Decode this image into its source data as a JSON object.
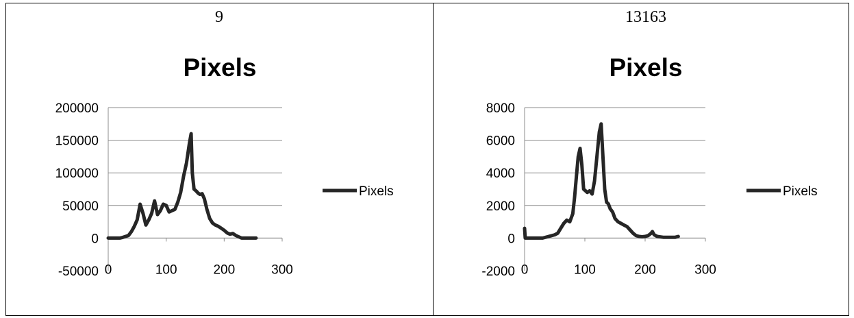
{
  "cells": [
    {
      "heading": "9"
    },
    {
      "heading": "13163"
    }
  ],
  "chart_data": [
    {
      "type": "line",
      "title": "Pixels",
      "xlabel": "",
      "ylabel": "",
      "xlim": [
        0,
        300
      ],
      "ylim": [
        -50000,
        200000
      ],
      "x_ticks": [
        0,
        100,
        200,
        300
      ],
      "y_ticks": [
        -50000,
        0,
        50000,
        100000,
        150000,
        200000
      ],
      "grid": "horizontal",
      "legend_position": "right",
      "series": [
        {
          "name": "Pixels",
          "color": "#262626",
          "x": [
            0,
            20,
            25,
            30,
            35,
            40,
            45,
            50,
            55,
            60,
            65,
            70,
            75,
            80,
            85,
            90,
            95,
            100,
            105,
            110,
            115,
            120,
            125,
            130,
            135,
            140,
            143,
            145,
            148,
            152,
            155,
            158,
            162,
            166,
            170,
            175,
            180,
            185,
            190,
            195,
            200,
            205,
            210,
            215,
            220,
            225,
            230,
            235,
            240,
            245,
            250,
            255
          ],
          "y": [
            0,
            0,
            1000,
            2500,
            4000,
            10000,
            18000,
            28000,
            52000,
            38000,
            20000,
            28000,
            38000,
            57000,
            36000,
            42000,
            52000,
            50000,
            40000,
            42000,
            44000,
            55000,
            70000,
            95000,
            115000,
            145000,
            160000,
            100000,
            75000,
            72000,
            69000,
            67000,
            68000,
            60000,
            45000,
            30000,
            23000,
            20000,
            18000,
            15000,
            12000,
            8000,
            6000,
            7000,
            4000,
            2000,
            0,
            0,
            0,
            0,
            0,
            0
          ]
        }
      ]
    },
    {
      "type": "line",
      "title": "Pixels",
      "xlabel": "",
      "ylabel": "",
      "xlim": [
        0,
        300
      ],
      "ylim": [
        -2000,
        8000
      ],
      "x_ticks": [
        0,
        100,
        200,
        300
      ],
      "y_ticks": [
        -2000,
        0,
        2000,
        4000,
        6000,
        8000
      ],
      "grid": "horizontal",
      "legend_position": "right",
      "series": [
        {
          "name": "Pixels",
          "color": "#262626",
          "x": [
            0,
            1,
            2,
            5,
            30,
            40,
            50,
            55,
            60,
            65,
            70,
            75,
            80,
            83,
            86,
            89,
            92,
            95,
            98,
            101,
            104,
            108,
            112,
            116,
            120,
            124,
            127,
            130,
            133,
            136,
            139,
            142,
            146,
            150,
            155,
            160,
            165,
            170,
            175,
            180,
            185,
            190,
            195,
            200,
            205,
            210,
            212,
            215,
            220,
            230,
            240,
            250,
            255
          ],
          "y": [
            600,
            0,
            0,
            0,
            0,
            100,
            200,
            300,
            600,
            900,
            1100,
            1000,
            1500,
            2500,
            3800,
            5000,
            5500,
            4500,
            3000,
            2900,
            2800,
            2900,
            2700,
            3500,
            5000,
            6500,
            7000,
            5000,
            3000,
            2200,
            2100,
            1800,
            1600,
            1200,
            1000,
            900,
            800,
            700,
            500,
            300,
            150,
            100,
            80,
            100,
            150,
            300,
            400,
            200,
            100,
            50,
            50,
            50,
            100
          ]
        }
      ]
    }
  ]
}
